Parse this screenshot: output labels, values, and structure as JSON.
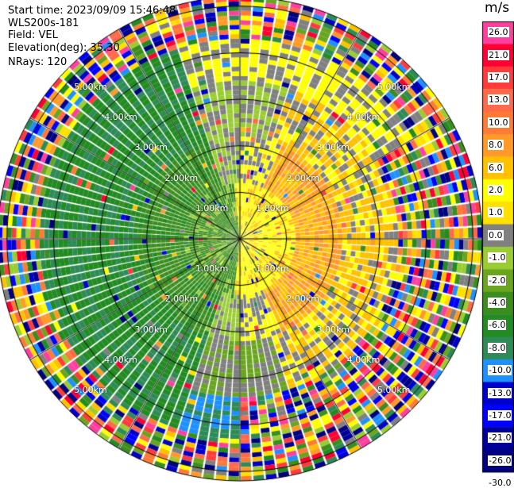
{
  "header": {
    "start_time": "Start time: 2023/09/09 15:46:48",
    "instrument": "WLS200s-181",
    "field": "Field: VEL",
    "elevation": "Elevation(deg): 35.30",
    "nrays": "NRays: 120"
  },
  "chart_data": {
    "type": "heatmap",
    "subtype": "radar-ppi",
    "units": "m/s",
    "range_ring_labels": [
      "1.00km",
      "2.00km",
      "3.00km",
      "4.00km",
      "5.00km"
    ],
    "range_rings_km": [
      1,
      2,
      3,
      4,
      5
    ],
    "max_range_km": 5.2,
    "n_rays": 120,
    "colorbar": {
      "title": "m/s",
      "ticks": [
        "26.0",
        "21.0",
        "17.0",
        "13.0",
        "10.0",
        "8.0",
        "6.0",
        "2.0",
        "1.0",
        "0.0",
        "-1.0",
        "-2.0",
        "-4.0",
        "-6.0",
        "-8.0",
        "-10.0",
        "-13.0",
        "-17.0",
        "-21.0",
        "-26.0",
        "-30.0"
      ],
      "colors": [
        "#ff3fa0",
        "#ff0033",
        "#ff3b3b",
        "#ff6a4a",
        "#ff7a35",
        "#ff9a2a",
        "#ffc000",
        "#ffff00",
        "#ffe000",
        "#808080",
        "#9acd32",
        "#6aa520",
        "#3b8e1e",
        "#228b22",
        "#2e8b57",
        "#1e90ff",
        "#0000cd",
        "#0000ff",
        "#000099",
        "#000080"
      ]
    }
  }
}
